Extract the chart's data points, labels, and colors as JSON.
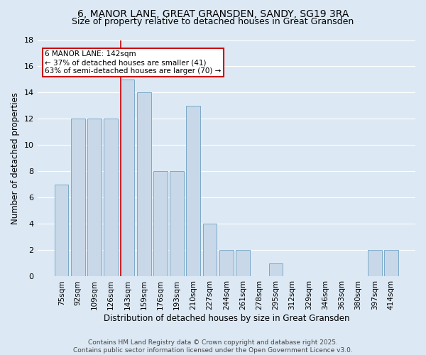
{
  "title": "6, MANOR LANE, GREAT GRANSDEN, SANDY, SG19 3RA",
  "subtitle": "Size of property relative to detached houses in Great Gransden",
  "xlabel": "Distribution of detached houses by size in Great Gransden",
  "ylabel": "Number of detached properties",
  "categories": [
    "75sqm",
    "92sqm",
    "109sqm",
    "126sqm",
    "143sqm",
    "159sqm",
    "176sqm",
    "193sqm",
    "210sqm",
    "227sqm",
    "244sqm",
    "261sqm",
    "278sqm",
    "295sqm",
    "312sqm",
    "329sqm",
    "346sqm",
    "363sqm",
    "380sqm",
    "397sqm",
    "414sqm"
  ],
  "values": [
    7,
    12,
    12,
    12,
    15,
    14,
    8,
    8,
    13,
    4,
    2,
    2,
    0,
    1,
    0,
    0,
    0,
    0,
    0,
    2,
    2
  ],
  "bar_color": "#c8d8e8",
  "bar_edge_color": "#7aaac8",
  "background_color": "#dce9f5",
  "grid_color": "#ffffff",
  "vline_bar_index": 4,
  "vline_color": "#cc0000",
  "annotation_line1": "6 MANOR LANE: 142sqm",
  "annotation_line2": "← 37% of detached houses are smaller (41)",
  "annotation_line3": "63% of semi-detached houses are larger (70) →",
  "annotation_box_color": "#ffffff",
  "annotation_box_edge_color": "#cc0000",
  "footer_line1": "Contains HM Land Registry data © Crown copyright and database right 2025.",
  "footer_line2": "Contains public sector information licensed under the Open Government Licence v3.0.",
  "ylim": [
    0,
    18
  ],
  "yticks": [
    0,
    2,
    4,
    6,
    8,
    10,
    12,
    14,
    16,
    18
  ]
}
